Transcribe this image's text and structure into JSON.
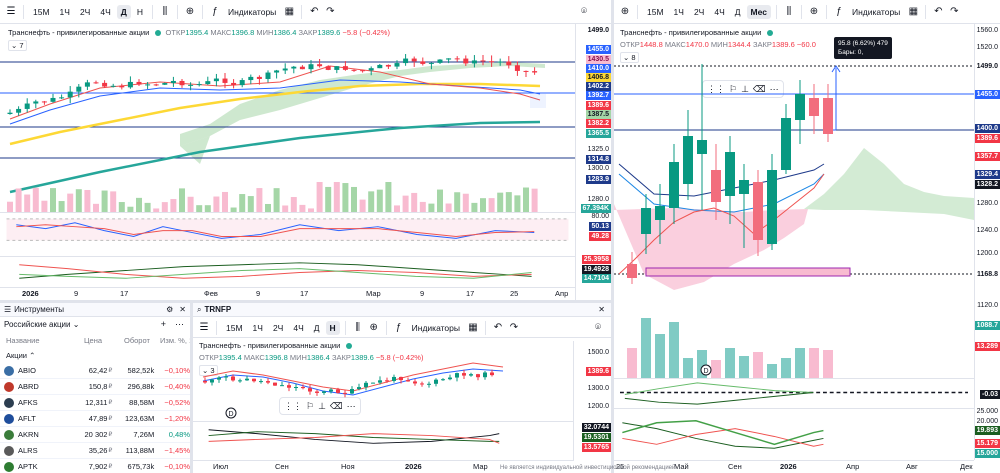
{
  "colors": {
    "up": "#089981",
    "down": "#f23645",
    "accent": "#2962ff"
  },
  "main_chart": {
    "toolbar": {
      "timeframes": [
        "15М",
        "1Ч",
        "2Ч",
        "4Ч",
        "Д",
        "Н"
      ],
      "active_timeframe": "Д",
      "indicators_label": "Индикаторы"
    },
    "legend": {
      "symbol": "Транснефть - привилегированные акции",
      "open_key": "ОТКР",
      "open": "1395.4",
      "high_key": "МАКС",
      "high": "1396.8",
      "low_key": "МИН",
      "low": "1386.4",
      "close_key": "ЗАКР",
      "close": "1389.6",
      "change": "−5.8 (−0.42%)",
      "count": "7"
    },
    "price_axis": [
      "1499.0",
      "1455.0",
      "1430.5",
      "1410.0",
      "1406.8",
      "1402.2",
      "1392.7",
      "1389.6",
      "1387.5",
      "1382.2",
      "1365.5",
      "1325.0",
      "1314.8",
      "1300.0",
      "1283.9",
      "1280.0"
    ],
    "volume_tag": "67.394K",
    "osc1_tags": [
      "80.00",
      "50.13",
      "49.28"
    ],
    "osc2_tags": [
      "25.3958",
      "19.4928",
      "14.7104"
    ],
    "time_axis": [
      "2026",
      "9",
      "17",
      "Фев",
      "9",
      "17",
      "Мар",
      "9",
      "17",
      "25",
      "Апр"
    ]
  },
  "right_chart": {
    "toolbar": {
      "timeframes": [
        "15М",
        "1Ч",
        "2Ч",
        "4Ч",
        "Д",
        "Мес"
      ],
      "active_timeframe": "Мес",
      "indicators_label": "Индикаторы"
    },
    "legend": {
      "symbol": "Транснефть - привилегированные акции",
      "open_key": "ОТКР",
      "open": "1448.8",
      "high_key": "МАКС",
      "high": "1470.0",
      "low_key": "МИН",
      "low": "1344.4",
      "close_key": "ЗАКР",
      "close": "1389.6",
      "change": "−60.0",
      "count": "8"
    },
    "measure_tooltip": {
      "line1": "95.8 (6.62%) 479",
      "line2": "Бары: 0,"
    },
    "price_axis": [
      "1560.0",
      "1520.0",
      "1499.0",
      "1455.0",
      "1400.0",
      "1389.6",
      "1357.7",
      "1329.4",
      "1328.2",
      "1280.0",
      "1240.0",
      "1200.0",
      "1168.8",
      "1120.0"
    ],
    "volume_tag": "1088.7",
    "volume_tag2": "13.289",
    "osc1_tag": "-0.03",
    "osc2_ticks": [
      "25.000",
      "20.000"
    ],
    "osc2_tags": [
      "19.893",
      "15.179",
      "15.000"
    ],
    "time_axis": [
      "25",
      "Май",
      "Сен",
      "2026",
      "Апр",
      "Авг",
      "Дек"
    ]
  },
  "watchlist": {
    "title": "Инструменты",
    "list_name": "Российские акции",
    "columns": [
      "Название",
      "Цена",
      "Оборот",
      "Изм. %, 1д"
    ],
    "section": "Акции",
    "rows": [
      {
        "ticker": "ABIO",
        "price": "62,42",
        "unit": "₽",
        "turnover": "582,52k",
        "change": "−0,10%",
        "dir": "down",
        "color": "#3a6ea5"
      },
      {
        "ticker": "ABRD",
        "price": "150,8",
        "unit": "₽",
        "turnover": "296,88k",
        "change": "−0,40%",
        "dir": "down",
        "color": "#c0392b"
      },
      {
        "ticker": "AFKS",
        "price": "12,311",
        "unit": "₽",
        "turnover": "88,58M",
        "change": "−0,52%",
        "dir": "down",
        "color": "#2c3e50"
      },
      {
        "ticker": "AFLT",
        "price": "47,89",
        "unit": "₽",
        "turnover": "123,63M",
        "change": "−1,20%",
        "dir": "down",
        "color": "#1f4e9c"
      },
      {
        "ticker": "AKRN",
        "price": "20 302",
        "unit": "₽",
        "turnover": "7,26M",
        "change": "0,48%",
        "dir": "up",
        "color": "#3b7d3b"
      },
      {
        "ticker": "ALRS",
        "price": "35,26",
        "unit": "₽",
        "turnover": "113,88M",
        "change": "−1,45%",
        "dir": "down",
        "color": "#5a5a5a"
      },
      {
        "ticker": "APTK",
        "price": "7,902",
        "unit": "₽",
        "turnover": "675,73k",
        "change": "−0,10%",
        "dir": "down",
        "color": "#2e7d32"
      }
    ]
  },
  "mini_chart": {
    "symbol_tab": "TRNFP",
    "toolbar": {
      "timeframes": [
        "15М",
        "1Ч",
        "2Ч",
        "4Ч",
        "Д",
        "Н"
      ],
      "active_timeframe": "Н",
      "indicators_label": "Индикаторы"
    },
    "legend": {
      "symbol": "Транснефть - привилегированные акции",
      "open_key": "ОТКР",
      "open": "1395.4",
      "high_key": "МАКС",
      "high": "1396.8",
      "low_key": "МИН",
      "low": "1386.4",
      "close_key": "ЗАКР",
      "close": "1389.6",
      "change": "−5.8 (−0.42%)",
      "count": "3"
    },
    "price_axis": [
      "1500.0",
      "1389.6",
      "1300.0",
      "1200.0"
    ],
    "osc_tags": [
      "32.0744",
      "19.5301",
      "13.5765"
    ],
    "time_axis": [
      "Июл",
      "Сен",
      "Ноя",
      "2026",
      "Мар"
    ]
  },
  "footer_note": "Не является индивидуальной инвестиционной рекомендацией"
}
